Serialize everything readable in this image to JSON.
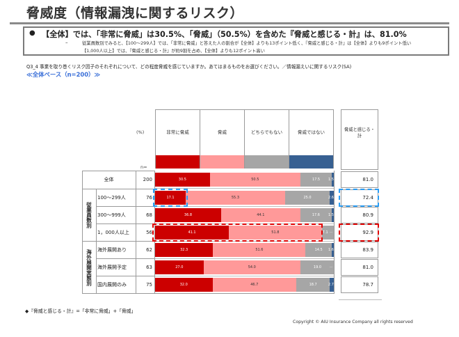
{
  "title": "脅威度（情報漏洩に関するリスク）",
  "summary": {
    "bullet": "●",
    "main": "【全体】では、「非常に脅威」は30.5%、「脅威」（50.5%）を含めた『脅威と感じる・計』は、81.0%",
    "dash": "–",
    "sub1": "従業員数別でみると、【100〜299人】では、「非常に脅威」と答えた人の割合が【全体】よりも13ポイント低く、『脅威と感じる・計』は【全体】よりも9ポイント低い",
    "sub2": "【1,000人以上】では、『脅威と感じる・計』が約9割を占め、【全体】よりも12ポイント高い"
  },
  "question": "Q3_4 事業を取り巻くリスク因子のそれぞれについて、どの程度脅威を感じていますか。あてはまるものをお選びください。／情報漏えいに関するリスク(SA)",
  "base": "≪全体ベース（n=200）≫",
  "footnote": "◆『脅威と感じる・計』=「非常に脅威」+「脅威」",
  "copyright": "Copyright © AIU Insurance Company all rights reserved",
  "chart_data": {
    "type": "bar",
    "orientation": "horizontal-stacked-100",
    "unit_label": "(%)",
    "n_label": "n=",
    "series": [
      {
        "name": "非常に脅威",
        "color": "#cc0000"
      },
      {
        "name": "脅威",
        "color": "#ff9999"
      },
      {
        "name": "どちらでもない",
        "color": "#a6a6a6"
      },
      {
        "name": "脅威ではない",
        "color": "#376092"
      }
    ],
    "total_header": "脅威と感じる・計",
    "groups": [
      {
        "name": "",
        "rows": [
          0
        ]
      },
      {
        "name": "従業員数別",
        "rows": [
          1,
          2,
          3
        ]
      },
      {
        "name": "海外展開実態別",
        "rows": [
          4,
          5,
          6
        ]
      }
    ],
    "rows": [
      {
        "label": "全体",
        "n": "200",
        "values": [
          30.5,
          50.5,
          17.5,
          1.5
        ],
        "labels": [
          "30.5",
          "50.5",
          "17.5",
          "1.5"
        ],
        "total": "81.0",
        "highlight": ""
      },
      {
        "label": "100〜299人",
        "n": "76",
        "values": [
          17.1,
          55.3,
          25.0,
          2.6
        ],
        "labels": [
          "17.1",
          "55.3",
          "25.0",
          "2.6"
        ],
        "total": "72.4",
        "highlight": "blue"
      },
      {
        "label": "300〜999人",
        "n": "68",
        "values": [
          36.8,
          44.1,
          17.6,
          1.5
        ],
        "labels": [
          "36.8",
          "44.1",
          "17.6",
          "1.5"
        ],
        "total": "80.9",
        "highlight": ""
      },
      {
        "label": "1，000人以上",
        "n": "56",
        "values": [
          41.1,
          51.8,
          7.1,
          0
        ],
        "labels": [
          "41.1",
          "51.8",
          "7.1",
          "—"
        ],
        "total": "92.9",
        "highlight": "red"
      },
      {
        "label": "海外展開あり",
        "n": "62",
        "values": [
          32.3,
          51.6,
          14.5,
          1.6
        ],
        "labels": [
          "32.3",
          "51.6",
          "14.5",
          "1.6"
        ],
        "total": "83.9",
        "highlight": ""
      },
      {
        "label": "海外展開予定",
        "n": "63",
        "values": [
          27.0,
          54.0,
          19.0,
          0
        ],
        "labels": [
          "27.0",
          "54.0",
          "19.0",
          "—"
        ],
        "total": "81.0",
        "highlight": ""
      },
      {
        "label": "国内展開のみ",
        "n": "75",
        "values": [
          32.0,
          46.7,
          18.7,
          2.7
        ],
        "labels": [
          "32.0",
          "46.7",
          "18.7",
          "2.7"
        ],
        "total": "78.7",
        "highlight": ""
      }
    ]
  }
}
